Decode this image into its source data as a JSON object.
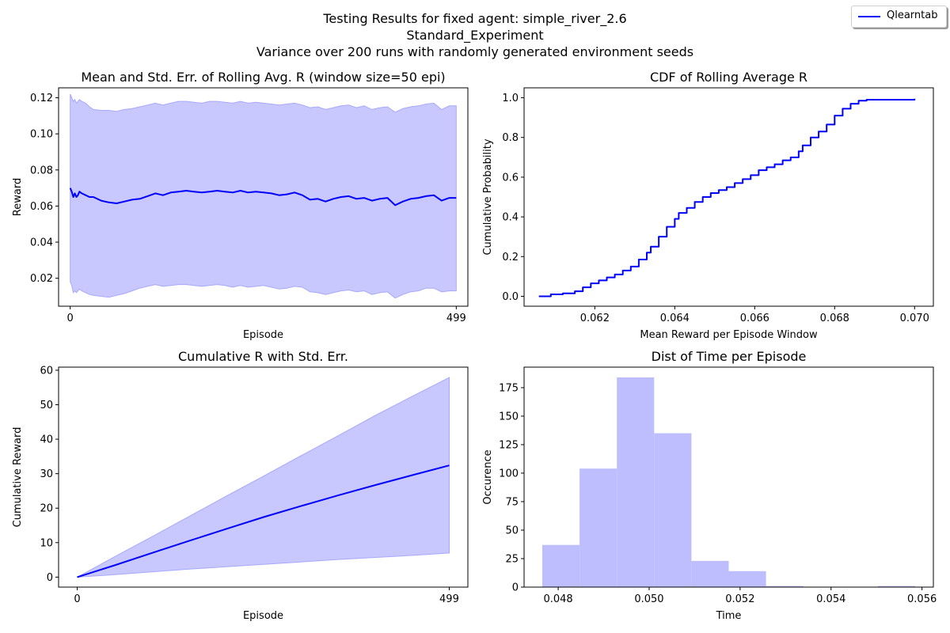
{
  "figure": {
    "suptitle": [
      "Testing Results for fixed agent: simple_river_2.6",
      "Standard_Experiment",
      "Variance over 200 runs with randomly generated environment seeds"
    ],
    "legend": [
      {
        "label": "Qlearntab",
        "color": "#0000ff"
      }
    ],
    "line_color": "#0000ff",
    "fill_color": "#c8c8ff"
  },
  "chart_data": [
    {
      "type": "line",
      "title": "Mean and Std. Err. of Rolling Avg. R (window size=50 epi)",
      "xlabel": "Episode",
      "ylabel": "Reward",
      "xlim": [
        -15,
        514
      ],
      "ylim": [
        0.0045,
        0.1255
      ],
      "xticks": [
        0,
        499
      ],
      "yticks": [
        0.02,
        0.04,
        0.06,
        0.08,
        0.1,
        0.12
      ],
      "ytick_labels": [
        "0.02",
        "0.04",
        "0.06",
        "0.08",
        "0.10",
        "0.12"
      ],
      "series": [
        {
          "x": [
            0,
            2,
            4,
            6,
            8,
            10,
            12,
            15,
            20,
            25,
            30,
            40,
            50,
            60,
            70,
            80,
            90,
            100,
            110,
            120,
            130,
            140,
            150,
            160,
            170,
            180,
            190,
            200,
            210,
            220,
            230,
            240,
            250,
            260,
            270,
            280,
            290,
            300,
            310,
            320,
            330,
            340,
            350,
            360,
            370,
            380,
            390,
            400,
            410,
            420,
            430,
            440,
            450,
            460,
            470,
            480,
            490,
            499
          ],
          "y": [
            0.07,
            0.068,
            0.065,
            0.067,
            0.065,
            0.066,
            0.068,
            0.067,
            0.066,
            0.065,
            0.065,
            0.063,
            0.062,
            0.0615,
            0.0625,
            0.0635,
            0.064,
            0.0655,
            0.067,
            0.066,
            0.0675,
            0.068,
            0.0685,
            0.068,
            0.0675,
            0.068,
            0.0685,
            0.068,
            0.0675,
            0.0685,
            0.0675,
            0.068,
            0.0675,
            0.067,
            0.066,
            0.0665,
            0.0675,
            0.066,
            0.0635,
            0.064,
            0.0625,
            0.064,
            0.065,
            0.0655,
            0.064,
            0.0645,
            0.063,
            0.064,
            0.0645,
            0.0605,
            0.0625,
            0.064,
            0.0645,
            0.0655,
            0.066,
            0.063,
            0.0645,
            0.0645
          ],
          "lower": [
            0.018,
            0.016,
            0.012,
            0.013,
            0.012,
            0.013,
            0.014,
            0.013,
            0.012,
            0.011,
            0.0105,
            0.01,
            0.0095,
            0.0105,
            0.0115,
            0.013,
            0.0145,
            0.0155,
            0.0165,
            0.0155,
            0.016,
            0.0165,
            0.0165,
            0.016,
            0.0155,
            0.016,
            0.0165,
            0.016,
            0.015,
            0.016,
            0.015,
            0.0155,
            0.016,
            0.015,
            0.014,
            0.0145,
            0.0155,
            0.015,
            0.0125,
            0.012,
            0.011,
            0.012,
            0.013,
            0.0135,
            0.0125,
            0.013,
            0.011,
            0.012,
            0.0125,
            0.009,
            0.011,
            0.0125,
            0.013,
            0.0145,
            0.0145,
            0.0125,
            0.013,
            0.013
          ],
          "upper": [
            0.122,
            0.12,
            0.118,
            0.119,
            0.117,
            0.118,
            0.119,
            0.118,
            0.117,
            0.115,
            0.1135,
            0.113,
            0.113,
            0.1125,
            0.1135,
            0.114,
            0.115,
            0.116,
            0.117,
            0.116,
            0.117,
            0.118,
            0.118,
            0.1175,
            0.117,
            0.118,
            0.118,
            0.1175,
            0.117,
            0.118,
            0.117,
            0.1175,
            0.117,
            0.1165,
            0.116,
            0.1165,
            0.117,
            0.116,
            0.1145,
            0.115,
            0.1135,
            0.1145,
            0.1155,
            0.116,
            0.1145,
            0.1155,
            0.1135,
            0.1145,
            0.115,
            0.112,
            0.114,
            0.115,
            0.1155,
            0.1165,
            0.117,
            0.1135,
            0.1155,
            0.1155
          ]
        }
      ]
    },
    {
      "type": "line",
      "title": "CDF of Rolling Average R",
      "xlabel": "Mean Reward per Episode Window",
      "ylabel": "Cumulative Probability",
      "xlim": [
        0.06023,
        0.07047
      ],
      "ylim": [
        -0.05,
        1.05
      ],
      "xticks": [
        0.062,
        0.064,
        0.066,
        0.068,
        0.07
      ],
      "xtick_labels": [
        "0.062",
        "0.064",
        "0.066",
        "0.068",
        "0.070"
      ],
      "yticks": [
        0.0,
        0.2,
        0.4,
        0.6,
        0.8,
        1.0
      ],
      "ytick_labels": [
        "0.0",
        "0.2",
        "0.4",
        "0.6",
        "0.8",
        "1.0"
      ],
      "series": [
        {
          "x": [
            0.0606,
            0.0609,
            0.0612,
            0.0615,
            0.0617,
            0.0619,
            0.0621,
            0.0623,
            0.0625,
            0.0627,
            0.0629,
            0.0631,
            0.0633,
            0.0634,
            0.0636,
            0.0638,
            0.064,
            0.0641,
            0.0643,
            0.0645,
            0.0647,
            0.0649,
            0.0651,
            0.0653,
            0.0655,
            0.0657,
            0.0659,
            0.0661,
            0.0663,
            0.0665,
            0.0667,
            0.0669,
            0.0671,
            0.0672,
            0.0674,
            0.0676,
            0.0678,
            0.068,
            0.0682,
            0.0684,
            0.0686,
            0.0688,
            0.069,
            0.0695,
            0.07
          ],
          "y": [
            0.0,
            0.01,
            0.015,
            0.025,
            0.045,
            0.065,
            0.08,
            0.095,
            0.11,
            0.13,
            0.15,
            0.185,
            0.22,
            0.25,
            0.3,
            0.35,
            0.39,
            0.42,
            0.445,
            0.475,
            0.5,
            0.52,
            0.535,
            0.55,
            0.57,
            0.59,
            0.61,
            0.635,
            0.65,
            0.665,
            0.685,
            0.7,
            0.73,
            0.76,
            0.8,
            0.83,
            0.865,
            0.91,
            0.945,
            0.97,
            0.985,
            0.99,
            0.99,
            0.99,
            0.995
          ]
        }
      ]
    },
    {
      "type": "line",
      "title": "Cumulative R with Std. Err.",
      "xlabel": "Episode",
      "ylabel": "Cumulative Reward",
      "xlim": [
        -25,
        524
      ],
      "ylim": [
        -2.9,
        60.9
      ],
      "xticks": [
        0,
        499
      ],
      "yticks": [
        0,
        10,
        20,
        30,
        40,
        50,
        60
      ],
      "ytick_labels": [
        "0",
        "10",
        "20",
        "30",
        "40",
        "50",
        "60"
      ],
      "series": [
        {
          "x": [
            0,
            50,
            100,
            150,
            200,
            250,
            300,
            350,
            400,
            450,
            499
          ],
          "y": [
            0,
            3.4,
            7.0,
            10.5,
            14.0,
            17.4,
            20.6,
            23.7,
            26.7,
            29.6,
            32.4
          ],
          "lower": [
            0,
            0.7,
            1.5,
            2.3,
            3.0,
            3.7,
            4.4,
            5.1,
            5.7,
            6.3,
            7.0
          ],
          "upper": [
            0,
            5.9,
            11.7,
            17.6,
            23.5,
            29.3,
            35.2,
            41.0,
            46.9,
            52.5,
            57.9
          ]
        }
      ]
    },
    {
      "type": "bar",
      "title": "Dist of Time per Episode",
      "xlabel": "Time",
      "ylabel": "Occurence",
      "xlim": [
        0.04725,
        0.05625
      ],
      "ylim": [
        0,
        193
      ],
      "xticks": [
        0.048,
        0.05,
        0.052,
        0.054,
        0.056
      ],
      "xtick_labels": [
        "0.048",
        "0.050",
        "0.052",
        "0.054",
        "0.056"
      ],
      "yticks": [
        0,
        25,
        50,
        75,
        100,
        125,
        150,
        175
      ],
      "ytick_labels": [
        "0",
        "25",
        "50",
        "75",
        "100",
        "125",
        "150",
        "175"
      ],
      "bin_edges": [
        0.04765,
        0.04847,
        0.04929,
        0.05011,
        0.05093,
        0.05175,
        0.05257,
        0.05339,
        0.05421,
        0.05503,
        0.05585
      ],
      "values": [
        37,
        104,
        184,
        135,
        23,
        14,
        1,
        0,
        0,
        1
      ]
    }
  ]
}
